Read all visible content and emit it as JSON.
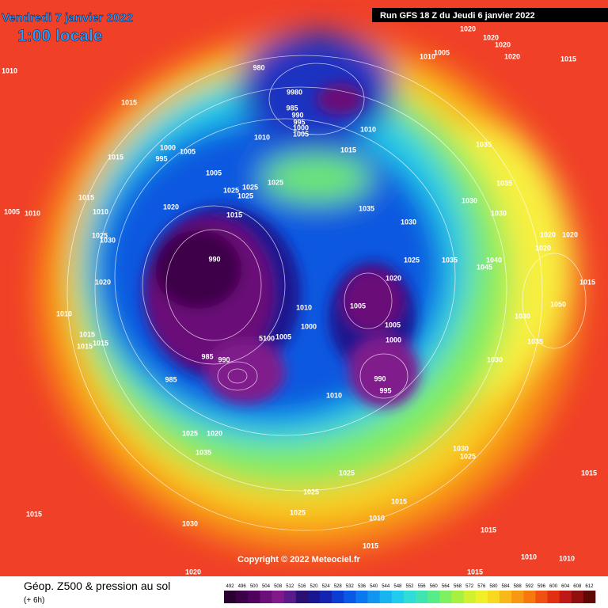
{
  "header": {
    "date": "Vendredi 7 janvier 2022",
    "time": "1:00 locale",
    "run": "Run GFS 18 Z du Jeudi 6 janvier 2022"
  },
  "copyright": "Copyright © 2022 Meteociel.fr",
  "footer": {
    "title": "Géop. Z500 & pression au sol",
    "subtitle": "(+ 6h)"
  },
  "colorbar": {
    "labels": [
      492,
      496,
      500,
      504,
      508,
      512,
      516,
      520,
      524,
      528,
      532,
      536,
      540,
      544,
      548,
      552,
      556,
      560,
      564,
      568,
      572,
      576,
      580,
      584,
      588,
      592,
      596,
      600,
      604,
      608,
      612
    ],
    "colors": [
      "#2a0030",
      "#3c0048",
      "#52005e",
      "#6a1078",
      "#801a8c",
      "#5a1a8a",
      "#2a1070",
      "#1a1690",
      "#1224b0",
      "#0c3cd0",
      "#0a58e8",
      "#0c78f0",
      "#1096f0",
      "#18b4f0",
      "#20ccee",
      "#30dcd8",
      "#40e4b0",
      "#58ec88",
      "#80f060",
      "#a8f040",
      "#d0f030",
      "#f0f028",
      "#f8d820",
      "#f8b818",
      "#f89810",
      "#f87810",
      "#f05010",
      "#e03010",
      "#c01818",
      "#901010",
      "#600808"
    ]
  },
  "isobars": [
    1010,
    1015,
    980,
    9980,
    985,
    990,
    995,
    1000,
    1005,
    1010,
    1015,
    1020,
    1020,
    1020,
    1020,
    1015,
    1010,
    1005,
    1035,
    1035,
    1030,
    1030,
    1030,
    1025,
    1035,
    1040,
    1045,
    1020,
    1020,
    1020,
    1015,
    1050,
    1030,
    1035,
    1030,
    1000,
    1005,
    995,
    1015,
    1005,
    1010,
    1025,
    1025,
    1025,
    1025,
    1035,
    1015,
    1020,
    1015,
    1010,
    1005,
    1010,
    1025,
    1030,
    990,
    1020,
    1010,
    1015,
    1015,
    1015,
    1010,
    1005,
    1020,
    1000,
    1005,
    1000,
    5100,
    1005,
    985,
    990,
    985,
    990,
    995,
    1010,
    1025,
    1020,
    1035,
    1030,
    1025,
    1025,
    1025,
    1015,
    1025,
    1010,
    1015,
    1030,
    1015,
    1015,
    1010,
    1010,
    1015,
    1020,
    1015
  ]
}
